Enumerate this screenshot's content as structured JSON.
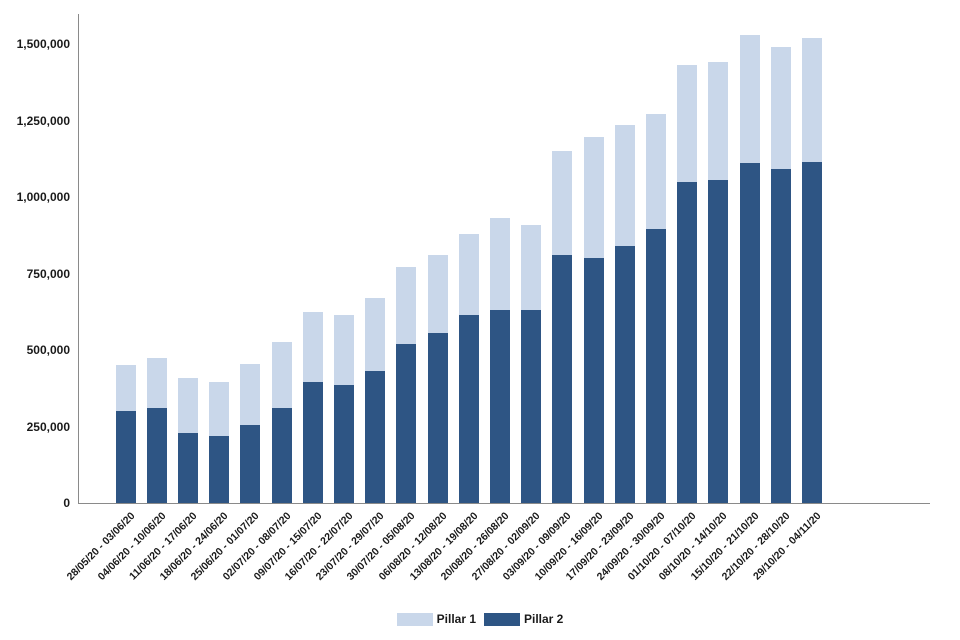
{
  "chart_data": {
    "type": "bar",
    "stacked": true,
    "title": "",
    "xlabel": "",
    "ylabel": "",
    "grid": false,
    "legend_position": "bottom",
    "ylim": [
      0,
      1500000
    ],
    "yticks": [
      0,
      250000,
      500000,
      750000,
      1000000,
      1250000,
      1500000
    ],
    "ytick_labels": [
      "0",
      "250,000",
      "500,000",
      "750,000",
      "1,000,000",
      "1,250,000",
      "1,500,000"
    ],
    "categories": [
      "28/05/20 - 03/06/20",
      "04/06/20 - 10/06/20",
      "11/06/20 - 17/06/20",
      "18/06/20 - 24/06/20",
      "25/06/20 - 01/07/20",
      "02/07/20 - 08/07/20",
      "09/07/20 - 15/07/20",
      "16/07/20 - 22/07/20",
      "23/07/20 - 29/07/20",
      "30/07/20 - 05/08/20",
      "06/08/20 - 12/08/20",
      "13/08/20 - 19/08/20",
      "20/08/20 - 26/08/20",
      "27/08/20 - 02/09/20",
      "03/09/20 - 09/09/20",
      "10/09/20 - 16/09/20",
      "17/09/20 - 23/09/20",
      "24/09/20 - 30/09/20",
      "01/10/20 - 07/10/20",
      "08/10/20 - 14/10/20",
      "15/10/20 - 21/10/20",
      "22/10/20 - 28/10/20",
      "29/10/20 - 04/11/20"
    ],
    "stack_order": [
      "Pillar 2",
      "Pillar 1"
    ],
    "series": [
      {
        "name": "Pillar 1",
        "color": "#c9d7ea",
        "values": [
          150000,
          165000,
          180000,
          175000,
          200000,
          215000,
          230000,
          230000,
          240000,
          250000,
          255000,
          265000,
          300000,
          280000,
          340000,
          395000,
          395000,
          375000,
          380000,
          385000,
          420000,
          400000,
          405000
        ]
      },
      {
        "name": "Pillar 2",
        "color": "#2e5584",
        "values": [
          300000,
          310000,
          230000,
          220000,
          255000,
          310000,
          395000,
          385000,
          430000,
          520000,
          555000,
          615000,
          630000,
          630000,
          810000,
          800000,
          840000,
          895000,
          1050000,
          1055000,
          1110000,
          1090000,
          1115000
        ]
      }
    ]
  },
  "legend": {
    "items": [
      {
        "label": "Pillar 1",
        "color": "#c9d7ea"
      },
      {
        "label": "Pillar 2",
        "color": "#2e5584"
      }
    ]
  }
}
